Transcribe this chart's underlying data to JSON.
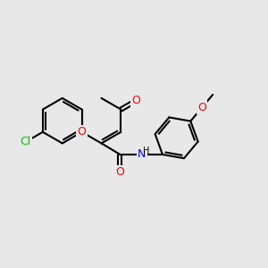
{
  "bg_color": "#e8e8e8",
  "bond_color": "#000000",
  "bond_width": 1.5,
  "atom_colors": {
    "O": "#ff0000",
    "N": "#0000ff",
    "Cl": "#00bb00",
    "C": "#000000",
    "H": "#000000"
  },
  "font_size": 9,
  "figsize": [
    3.0,
    3.0
  ],
  "dpi": 100
}
